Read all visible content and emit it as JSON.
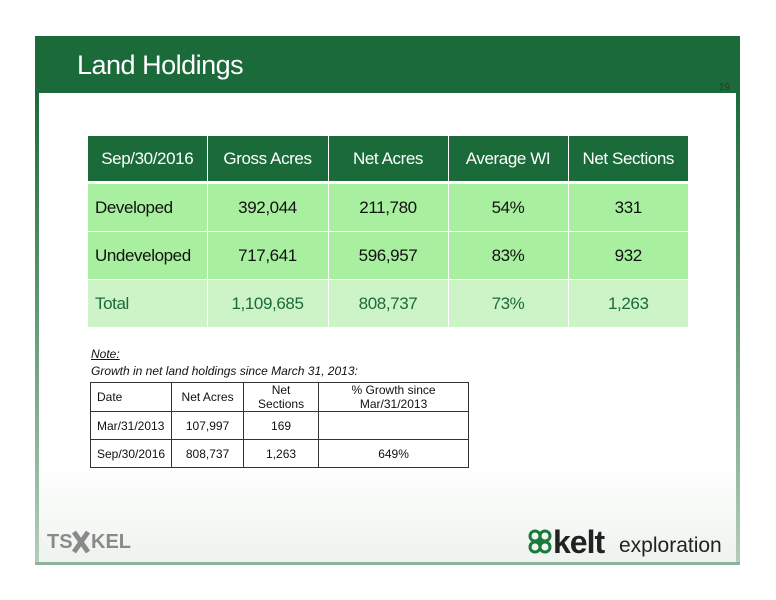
{
  "slide": {
    "title": "Land Holdings",
    "page_number": "19"
  },
  "holdings": {
    "headers": [
      "Sep/30/2016",
      "Gross Acres",
      "Net Acres",
      "Average WI",
      "Net Sections"
    ],
    "rows": [
      [
        "Developed",
        "392,044",
        "211,780",
        "54%",
        "331"
      ],
      [
        "Undeveloped",
        "717,641",
        "596,957",
        "83%",
        "932"
      ],
      [
        "Total",
        "1,109,685",
        "808,737",
        "73%",
        "1,263"
      ]
    ]
  },
  "note": {
    "label": "Note:",
    "text": "Growth in net land holdings since March 31, 2013:"
  },
  "growth": {
    "headers": [
      "Date",
      "Net Acres",
      "Net Sections",
      "% Growth since Mar/31/2013"
    ],
    "rows": [
      [
        "Mar/31/2013",
        "107,997",
        "169",
        ""
      ],
      [
        "Sep/30/2016",
        "808,737",
        "1,263",
        "649%"
      ]
    ]
  },
  "logos": {
    "tsx": "TSX KEL",
    "kelt_word": "kelt",
    "kelt_sub": "exploration"
  },
  "colors": {
    "header_green": "#1b6b3a",
    "row_green": "#a8f0a0",
    "total_row": "#ccf4c7"
  }
}
